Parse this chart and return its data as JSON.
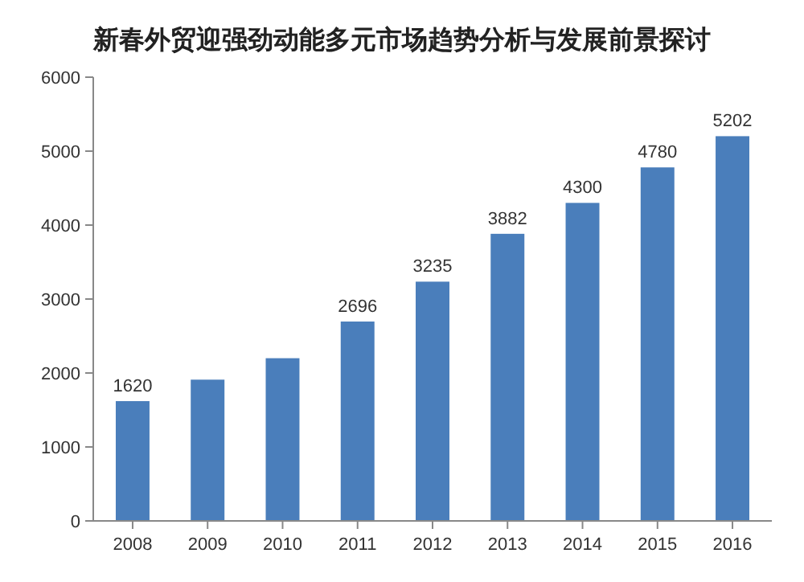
{
  "chart_data": {
    "type": "bar",
    "title": "新春外贸迎强劲动能多元市场趋势分析与发展前景探讨",
    "categories": [
      "2008",
      "2009",
      "2010",
      "2011",
      "2012",
      "2013",
      "2014",
      "2015",
      "2016"
    ],
    "values": [
      1620,
      1910,
      2200,
      2696,
      3235,
      3882,
      4300,
      4780,
      5202
    ],
    "value_labels": [
      "1620",
      null,
      null,
      "2696",
      "3235",
      "3882",
      "4300",
      "4780",
      "5202"
    ],
    "color": "#4a7ebb",
    "ylim": [
      0,
      6000
    ],
    "yticks": [
      0,
      1000,
      2000,
      3000,
      4000,
      5000,
      6000
    ],
    "grid": false
  }
}
